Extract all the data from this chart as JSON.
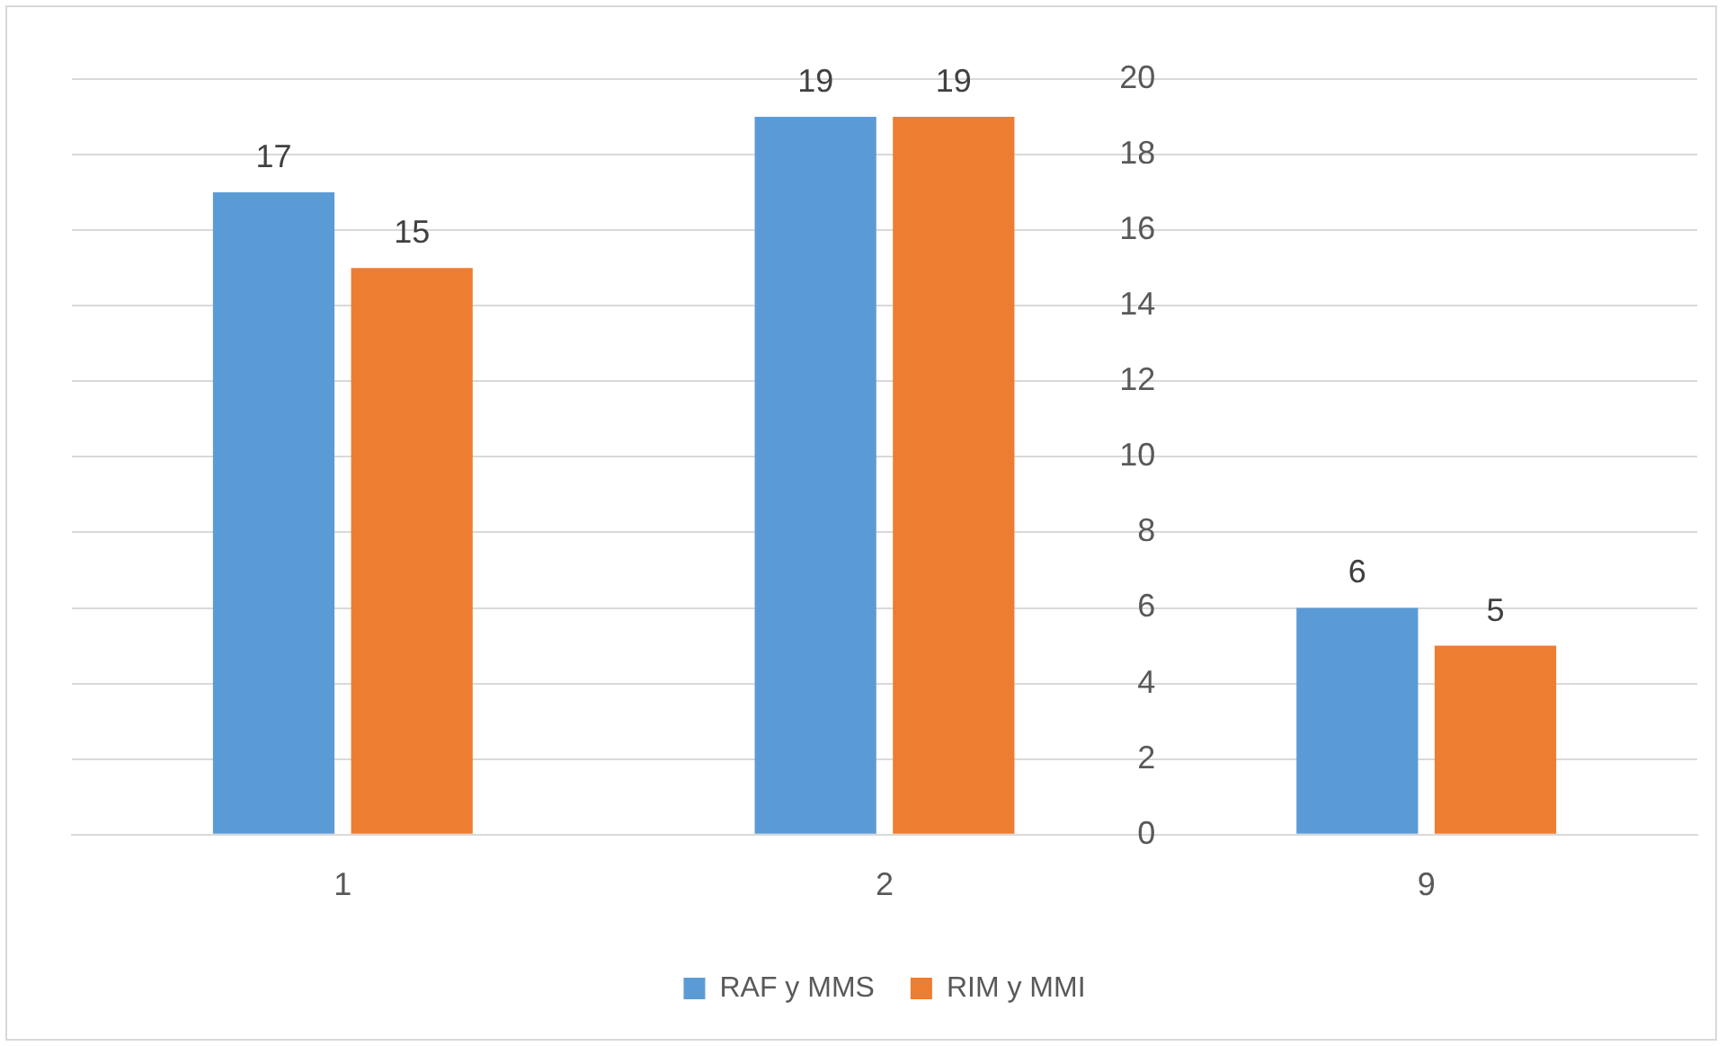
{
  "chart_data": {
    "type": "bar",
    "categories": [
      "1",
      "2",
      "9"
    ],
    "series": [
      {
        "name": "RAF y MMS",
        "color": "#5b9bd5",
        "values": [
          17,
          19,
          6
        ]
      },
      {
        "name": "RIM y MMI",
        "color": "#ed7d31",
        "values": [
          15,
          19,
          5
        ]
      }
    ],
    "ylim": [
      0,
      20
    ],
    "yticks": [
      0,
      2,
      4,
      6,
      8,
      10,
      12,
      14,
      16,
      18,
      20
    ],
    "grid": "y",
    "legend": "bottom",
    "data_labels": true
  }
}
